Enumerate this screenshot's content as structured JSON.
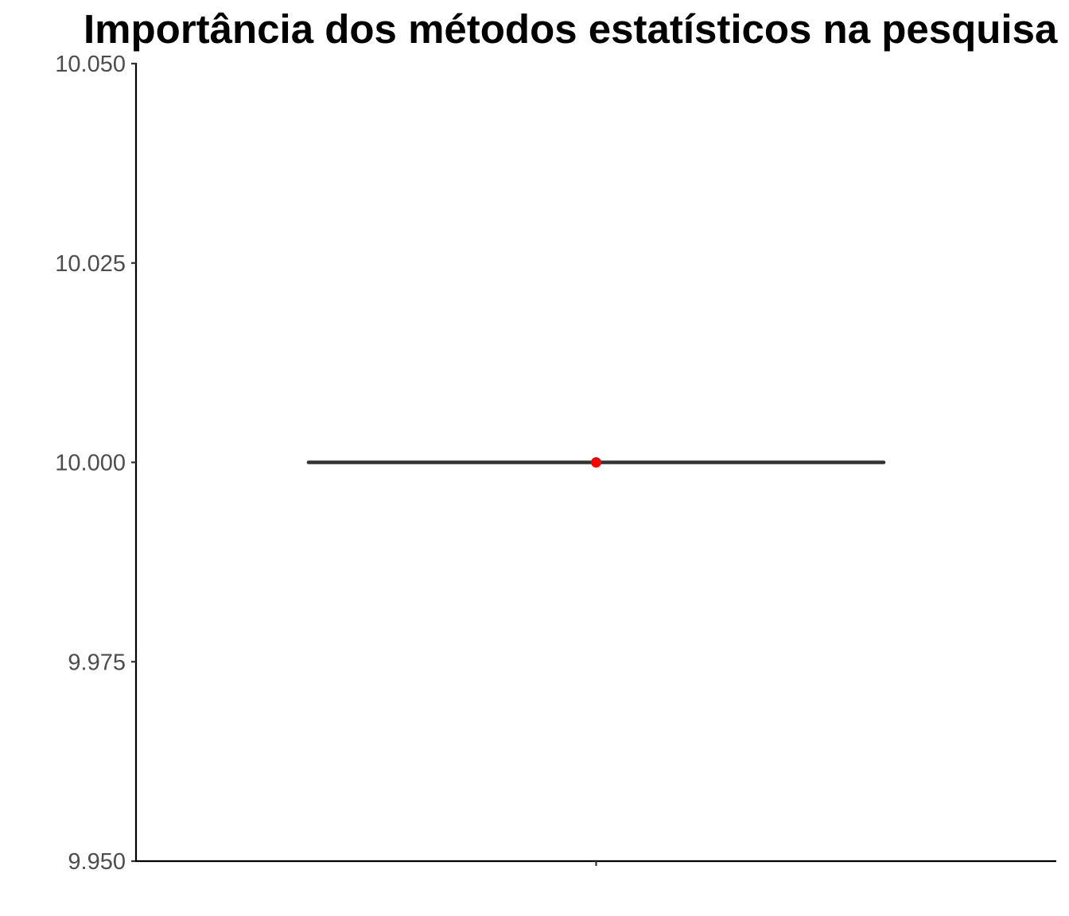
{
  "chart_data": {
    "type": "boxplot",
    "title": "Importância dos métodos estatísticos na pesquisa",
    "xlabel": "",
    "ylabel": "",
    "ylim": [
      9.95,
      10.05
    ],
    "y_ticks": [
      9.95,
      9.975,
      10.0,
      10.025,
      10.05
    ],
    "y_tick_labels": [
      "9.950",
      "9.975",
      "10.000",
      "10.025",
      "10.050"
    ],
    "x_categories": [
      ""
    ],
    "boxes": [
      {
        "category": "",
        "min": 10.0,
        "q1": 10.0,
        "median": 10.0,
        "q3": 10.0,
        "max": 10.0
      }
    ],
    "points": [
      {
        "category": "",
        "y": 10.0,
        "color": "#ff0000"
      }
    ],
    "grid": false,
    "legend": "none",
    "colors": {
      "box": "#333333",
      "mean_point": "#ff0000",
      "axis": "#000000",
      "tick_label": "#4d4d4d"
    }
  }
}
